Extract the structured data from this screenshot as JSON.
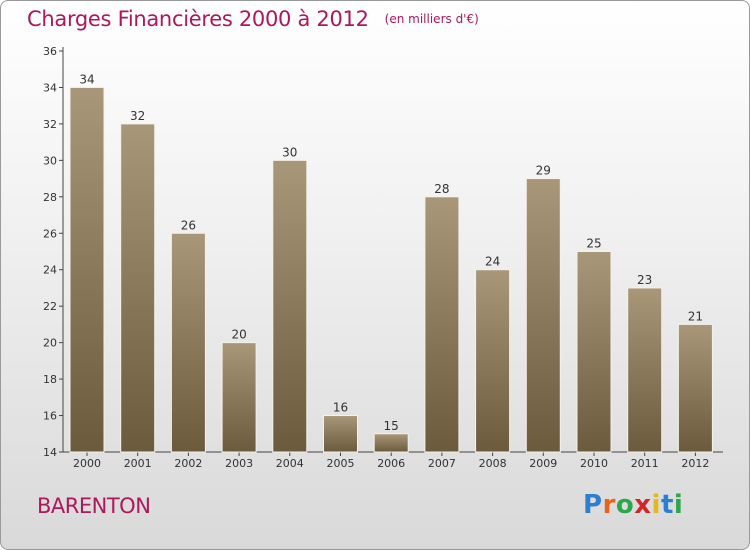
{
  "header": {
    "title": "Charges Financières 2000 à 2012",
    "unit": "(en milliers d'€)"
  },
  "footer": {
    "place": "BARENTON",
    "logo": [
      "P",
      "r",
      "o",
      "x",
      "i",
      "t",
      "i"
    ]
  },
  "colors": {
    "title": "#b0165c",
    "bar_top": "#a89778",
    "bar_bottom": "#6c5a3c",
    "logo": [
      "#2b7fd2",
      "#e8641a",
      "#2aa84a",
      "#d0262a",
      "#e2b81a",
      "#2b7fd2",
      "#2aa84a"
    ]
  },
  "chart_data": {
    "type": "bar",
    "title": "Charges Financières 2000 à 2012",
    "subtitle": "(en milliers d'€)",
    "categories": [
      "2000",
      "2001",
      "2002",
      "2003",
      "2004",
      "2005",
      "2006",
      "2007",
      "2008",
      "2009",
      "2010",
      "2011",
      "2012"
    ],
    "values": [
      34,
      32,
      26,
      20,
      30,
      16,
      15,
      28,
      24,
      29,
      25,
      23,
      21
    ],
    "ylim": [
      14,
      36
    ],
    "yticks": [
      14,
      16,
      18,
      20,
      22,
      24,
      26,
      28,
      30,
      32,
      34,
      36
    ],
    "xlabel": "",
    "ylabel": "",
    "grid": false,
    "data_labels": true
  }
}
